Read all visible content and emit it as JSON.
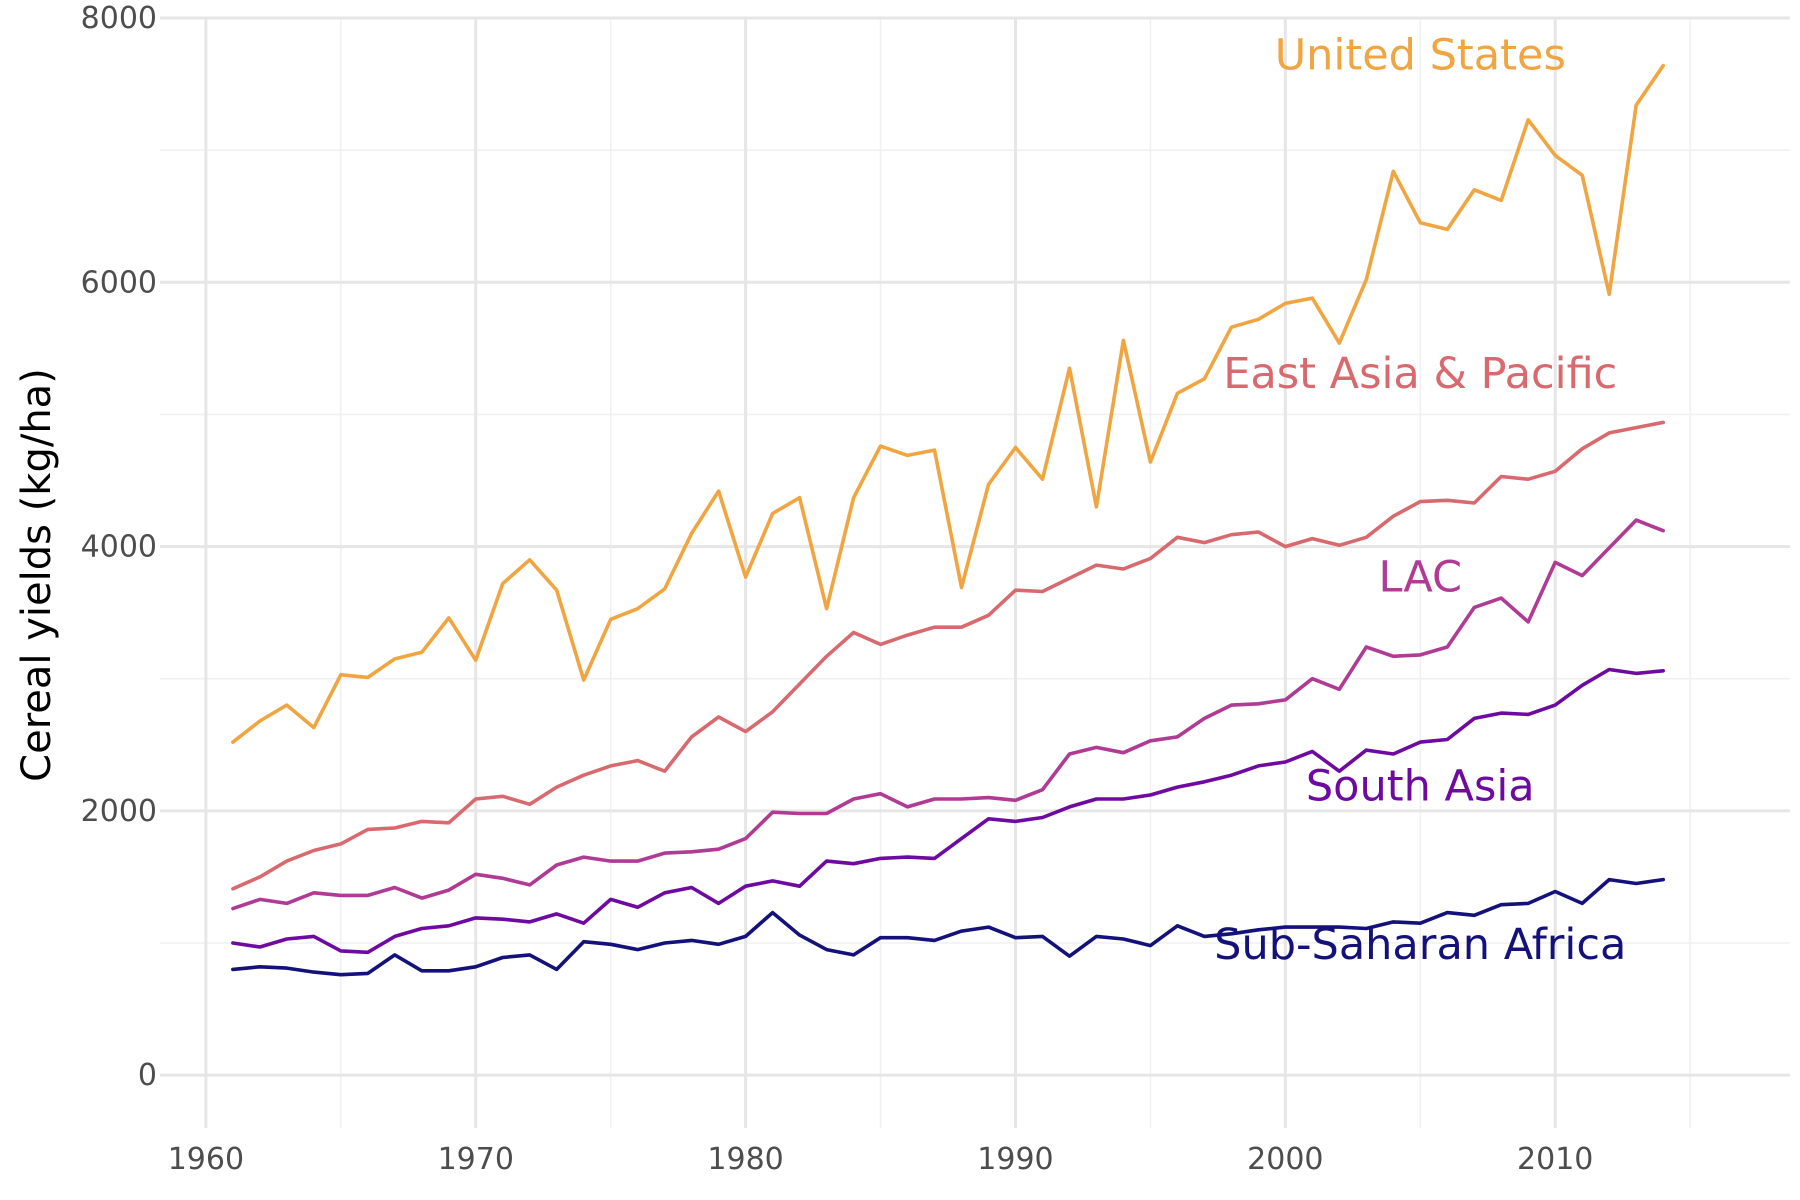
{
  "chart_data": {
    "type": "line",
    "title": "",
    "xlabel": "",
    "ylabel": "Cereal yields (kg/ha)",
    "xlim": [
      1958.3,
      2018.7
    ],
    "ylim": [
      -400,
      8000
    ],
    "x_ticks": [
      1960,
      1970,
      1980,
      1990,
      2000,
      2010
    ],
    "y_ticks": [
      0,
      2000,
      4000,
      6000,
      8000
    ],
    "grid": true,
    "legend": "direct labels",
    "x": [
      1961,
      1962,
      1963,
      1964,
      1965,
      1966,
      1967,
      1968,
      1969,
      1970,
      1971,
      1972,
      1973,
      1974,
      1975,
      1976,
      1977,
      1978,
      1979,
      1980,
      1981,
      1982,
      1983,
      1984,
      1985,
      1986,
      1987,
      1988,
      1989,
      1990,
      1991,
      1992,
      1993,
      1994,
      1995,
      1996,
      1997,
      1998,
      1999,
      2000,
      2001,
      2002,
      2003,
      2004,
      2005,
      2006,
      2007,
      2008,
      2009,
      2010,
      2011,
      2012,
      2013,
      2014
    ],
    "series": [
      {
        "name": "United States",
        "color": "#f0a541",
        "label_at": [
          2005,
          7610
        ],
        "values": [
          2520,
          2680,
          2800,
          2630,
          3030,
          3010,
          3150,
          3200,
          3460,
          3140,
          3720,
          3900,
          3670,
          2990,
          3450,
          3530,
          3680,
          4100,
          4420,
          3770,
          4250,
          4370,
          3530,
          4370,
          4760,
          4690,
          4730,
          3690,
          4470,
          4750,
          4510,
          5350,
          4300,
          5560,
          4640,
          5160,
          5270,
          5660,
          5720,
          5840,
          5880,
          5540,
          6020,
          6840,
          6450,
          6400,
          6700,
          6620,
          7230,
          6960,
          6810,
          5910,
          7340,
          7640
        ]
      },
      {
        "name": "East Asia & Pacific",
        "color": "#d8696e",
        "label_at": [
          2005,
          5200
        ],
        "values": [
          1410,
          1500,
          1620,
          1700,
          1750,
          1860,
          1870,
          1920,
          1910,
          2090,
          2110,
          2050,
          2180,
          2270,
          2340,
          2380,
          2300,
          2560,
          2710,
          2600,
          2750,
          2960,
          3170,
          3350,
          3260,
          3330,
          3390,
          3390,
          3480,
          3670,
          3660,
          3760,
          3860,
          3830,
          3910,
          4070,
          4030,
          4090,
          4110,
          4000,
          4060,
          4010,
          4070,
          4230,
          4340,
          4350,
          4330,
          4530,
          4510,
          4570,
          4740,
          4860,
          4900,
          4940
        ]
      },
      {
        "name": "LAC",
        "color": "#b03b95",
        "label_at": [
          2005,
          3660
        ],
        "values": [
          1260,
          1330,
          1300,
          1380,
          1360,
          1360,
          1420,
          1340,
          1400,
          1520,
          1490,
          1440,
          1590,
          1650,
          1620,
          1620,
          1680,
          1690,
          1710,
          1790,
          1990,
          1980,
          1980,
          2090,
          2130,
          2030,
          2090,
          2090,
          2100,
          2080,
          2160,
          2430,
          2480,
          2440,
          2530,
          2560,
          2700,
          2800,
          2810,
          2840,
          3000,
          2920,
          3240,
          3170,
          3180,
          3240,
          3540,
          3610,
          3430,
          3880,
          3780,
          3990,
          4200,
          4120
        ]
      },
      {
        "name": "South Asia",
        "color": "#6e0aa0",
        "label_at": [
          2005,
          2080
        ],
        "values": [
          1000,
          970,
          1030,
          1050,
          940,
          930,
          1050,
          1110,
          1130,
          1190,
          1180,
          1160,
          1220,
          1150,
          1330,
          1270,
          1380,
          1420,
          1300,
          1430,
          1470,
          1430,
          1620,
          1600,
          1640,
          1650,
          1640,
          1790,
          1940,
          1920,
          1950,
          2030,
          2090,
          2090,
          2120,
          2180,
          2220,
          2270,
          2340,
          2370,
          2450,
          2300,
          2460,
          2430,
          2520,
          2540,
          2700,
          2740,
          2730,
          2800,
          2950,
          3070,
          3040,
          3060
        ]
      },
      {
        "name": "Sub-Saharan Africa",
        "color": "#14117a",
        "label_at": [
          2005,
          880
        ],
        "values": [
          800,
          820,
          810,
          780,
          760,
          770,
          910,
          790,
          790,
          820,
          890,
          910,
          800,
          1010,
          990,
          950,
          1000,
          1020,
          990,
          1050,
          1230,
          1060,
          950,
          910,
          1040,
          1040,
          1020,
          1090,
          1120,
          1040,
          1050,
          900,
          1050,
          1030,
          980,
          1130,
          1050,
          1070,
          1100,
          1120,
          1120,
          1120,
          1110,
          1160,
          1150,
          1230,
          1210,
          1290,
          1300,
          1390,
          1300,
          1480,
          1450,
          1480
        ]
      }
    ]
  }
}
